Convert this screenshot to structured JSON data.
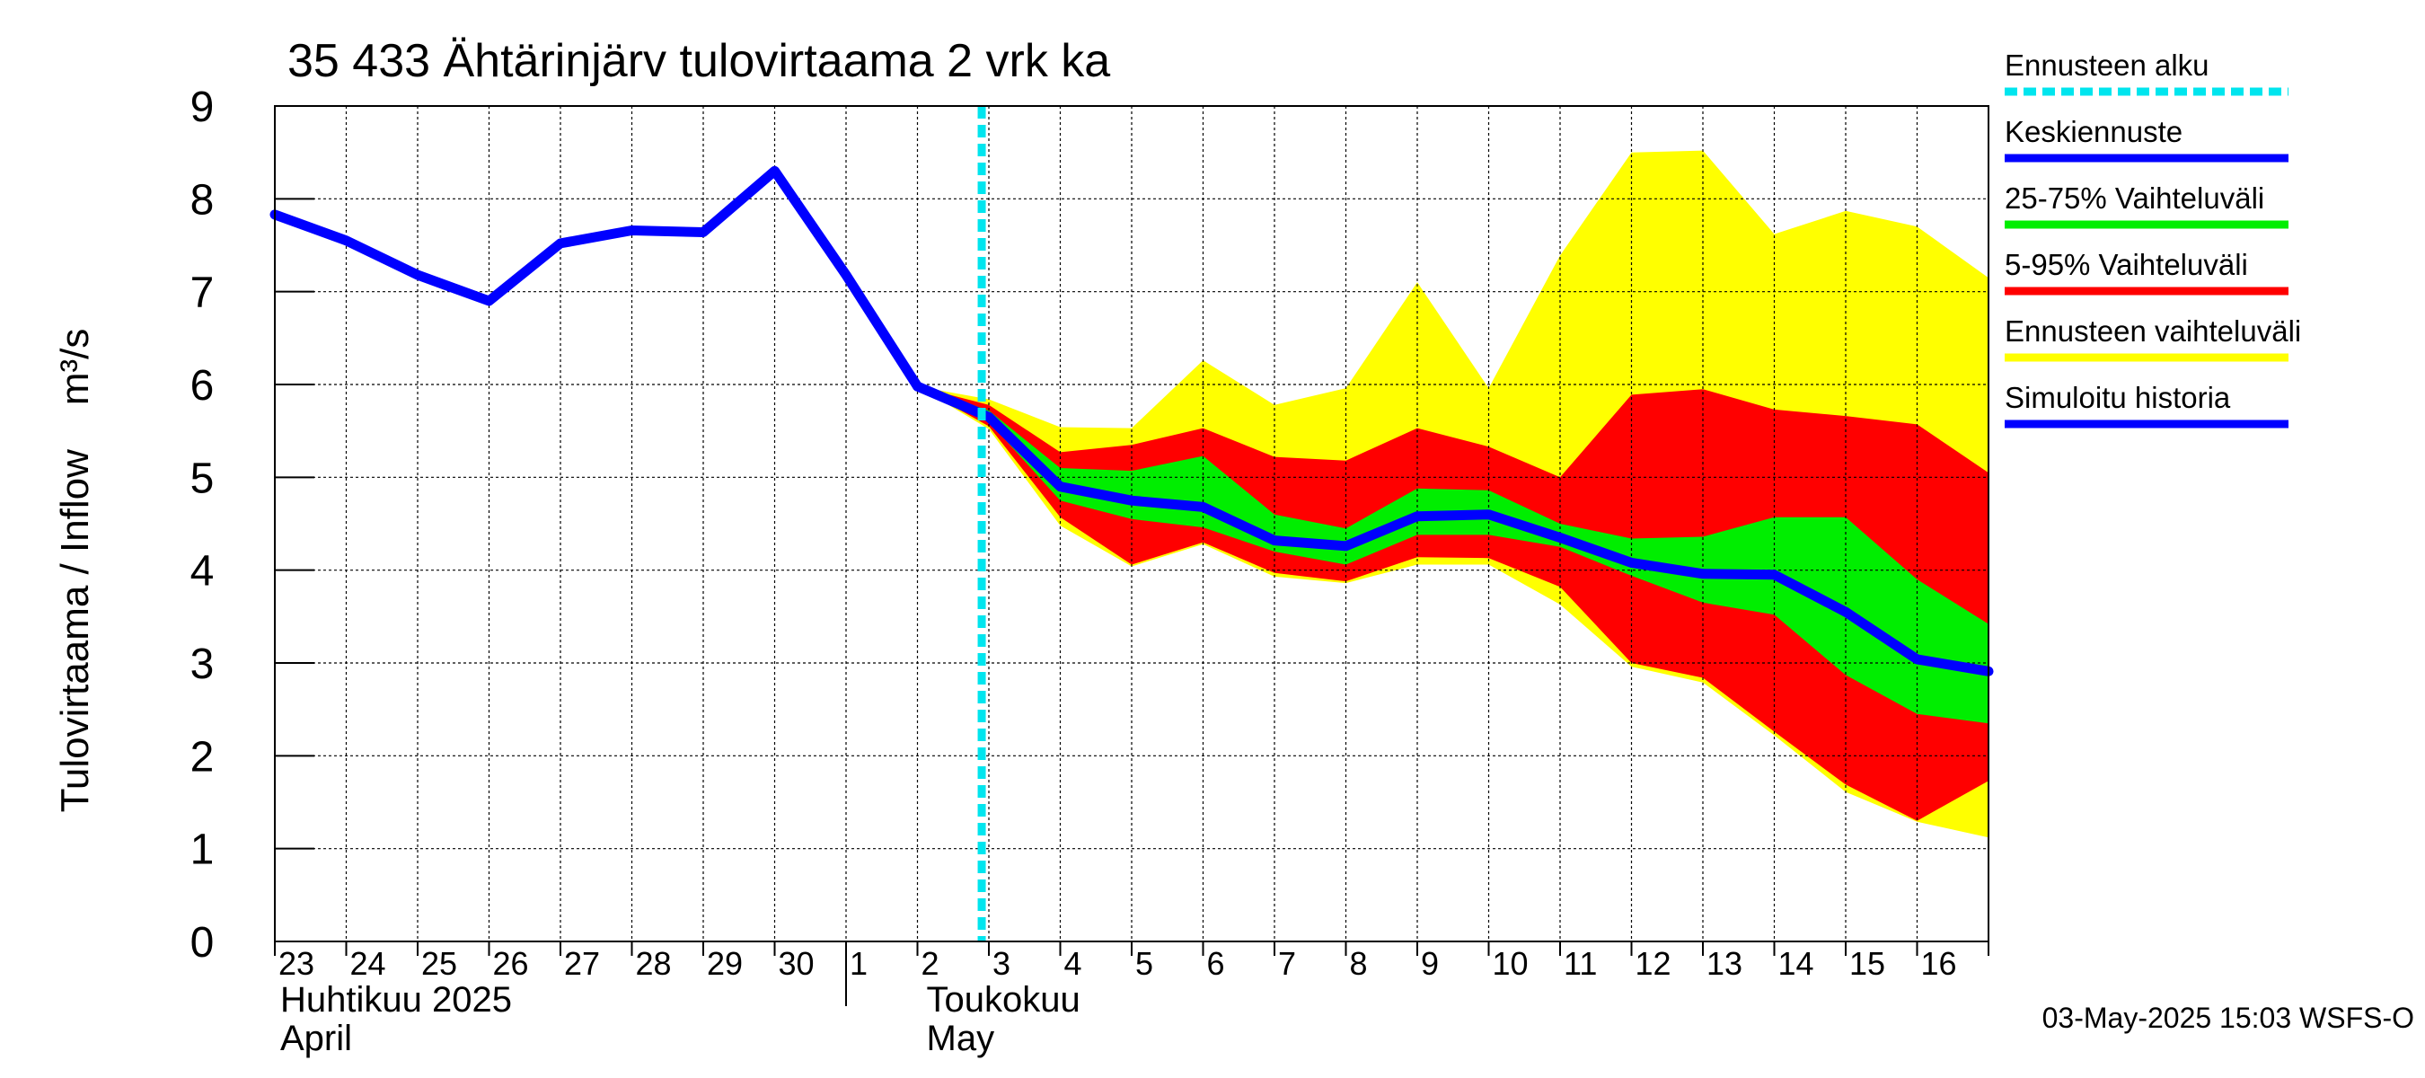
{
  "chart_data": {
    "type": "area",
    "title": "35 433 Ähtärinjärv tulovirtaama 2 vrk ka",
    "ylabel": "Tulovirtaama / Inflow    m³/s",
    "ylim": [
      0,
      9
    ],
    "yticks": [
      0,
      1,
      2,
      3,
      4,
      5,
      6,
      7,
      8,
      9
    ],
    "grid": true,
    "legend_position": "right",
    "x_tick_labels": [
      "23",
      "24",
      "25",
      "26",
      "27",
      "28",
      "29",
      "30",
      "1",
      "2",
      "3",
      "4",
      "5",
      "6",
      "7",
      "8",
      "9",
      "10",
      "11",
      "12",
      "13",
      "14",
      "15",
      "16"
    ],
    "month_labels": [
      {
        "fi": "Huhtikuu  2025",
        "en": "April"
      },
      {
        "fi": "Toukokuu",
        "en": "May"
      }
    ],
    "forecast_start": "2025-05-03",
    "footer": "03-May-2025 15:03 WSFS-O",
    "legend": [
      {
        "label": "Ennusteen alku",
        "color": "#00e5ee",
        "style": "dashed"
      },
      {
        "label": "Keskiennuste",
        "color": "#0000ff",
        "style": "line"
      },
      {
        "label": "25-75% Vaihteluväli",
        "color": "#00ee00",
        "style": "line"
      },
      {
        "label": "5-95% Vaihteluväli",
        "color": "#ff0000",
        "style": "line"
      },
      {
        "label": "Ennusteen vaihteluväli",
        "color": "#ffff00",
        "style": "line"
      },
      {
        "label": "Simuloitu historia",
        "color": "#0000ff",
        "style": "line"
      }
    ],
    "series": [
      {
        "name": "Simuloitu historia",
        "color": "#0000ff",
        "x": [
          "2025-04-23",
          "2025-04-24",
          "2025-04-25",
          "2025-04-26",
          "2025-04-27",
          "2025-04-28",
          "2025-04-29",
          "2025-04-30",
          "2025-05-01",
          "2025-05-02"
        ],
        "values": [
          7.83,
          7.55,
          7.18,
          6.9,
          7.52,
          7.66,
          7.64,
          8.3,
          7.18,
          5.98
        ]
      },
      {
        "name": "Keskiennuste",
        "color": "#0000ff",
        "x": [
          "2025-05-02",
          "2025-05-03",
          "2025-05-04",
          "2025-05-05",
          "2025-05-06",
          "2025-05-07",
          "2025-05-08",
          "2025-05-09",
          "2025-05-10",
          "2025-05-11",
          "2025-05-12",
          "2025-05-13",
          "2025-05-14",
          "2025-05-15",
          "2025-05-16",
          "2025-05-17"
        ],
        "values": [
          5.98,
          5.65,
          4.9,
          4.75,
          4.68,
          4.32,
          4.26,
          4.58,
          4.6,
          4.35,
          4.08,
          3.96,
          3.95,
          3.55,
          3.04,
          2.91
        ]
      }
    ],
    "bands": [
      {
        "name": "Ennusteen vaihteluväli",
        "color": "#ffff00",
        "x": [
          "2025-05-02",
          "2025-05-03",
          "2025-05-04",
          "2025-05-05",
          "2025-05-06",
          "2025-05-07",
          "2025-05-08",
          "2025-05-09",
          "2025-05-10",
          "2025-05-11",
          "2025-05-12",
          "2025-05-13",
          "2025-05-14",
          "2025-05-15",
          "2025-05-16",
          "2025-05-17"
        ],
        "upper": [
          5.98,
          5.84,
          5.54,
          5.53,
          6.26,
          5.78,
          5.96,
          7.1,
          5.96,
          7.39,
          8.5,
          8.52,
          7.62,
          7.87,
          7.7,
          7.15
        ],
        "lower": [
          5.98,
          5.52,
          4.48,
          4.04,
          4.28,
          3.93,
          3.86,
          4.06,
          4.06,
          3.63,
          2.96,
          2.79,
          2.22,
          1.61,
          1.29,
          1.12
        ]
      },
      {
        "name": "5-95% Vaihteluväli",
        "color": "#ff0000",
        "x": [
          "2025-05-02",
          "2025-05-03",
          "2025-05-04",
          "2025-05-05",
          "2025-05-06",
          "2025-05-07",
          "2025-05-08",
          "2025-05-09",
          "2025-05-10",
          "2025-05-11",
          "2025-05-12",
          "2025-05-13",
          "2025-05-14",
          "2025-05-15",
          "2025-05-16",
          "2025-05-17"
        ],
        "upper": [
          5.98,
          5.78,
          5.27,
          5.35,
          5.53,
          5.22,
          5.18,
          5.53,
          5.33,
          5.0,
          5.89,
          5.95,
          5.73,
          5.66,
          5.57,
          5.05
        ],
        "lower": [
          5.98,
          5.55,
          4.57,
          4.06,
          4.3,
          3.97,
          3.88,
          4.14,
          4.13,
          3.82,
          3.0,
          2.84,
          2.26,
          1.69,
          1.3,
          1.73
        ]
      },
      {
        "name": "25-75% Vaihteluväli",
        "color": "#00ee00",
        "x": [
          "2025-05-02",
          "2025-05-03",
          "2025-05-04",
          "2025-05-05",
          "2025-05-06",
          "2025-05-07",
          "2025-05-08",
          "2025-05-09",
          "2025-05-10",
          "2025-05-11",
          "2025-05-12",
          "2025-05-13",
          "2025-05-14",
          "2025-05-15",
          "2025-05-16",
          "2025-05-17"
        ],
        "upper": [
          5.98,
          5.72,
          5.1,
          5.07,
          5.23,
          4.6,
          4.45,
          4.88,
          4.86,
          4.5,
          4.34,
          4.36,
          4.57,
          4.57,
          3.9,
          3.42
        ],
        "lower": [
          5.98,
          5.6,
          4.75,
          4.55,
          4.46,
          4.2,
          4.06,
          4.38,
          4.38,
          4.25,
          3.94,
          3.65,
          3.52,
          2.87,
          2.45,
          2.35
        ]
      }
    ]
  }
}
